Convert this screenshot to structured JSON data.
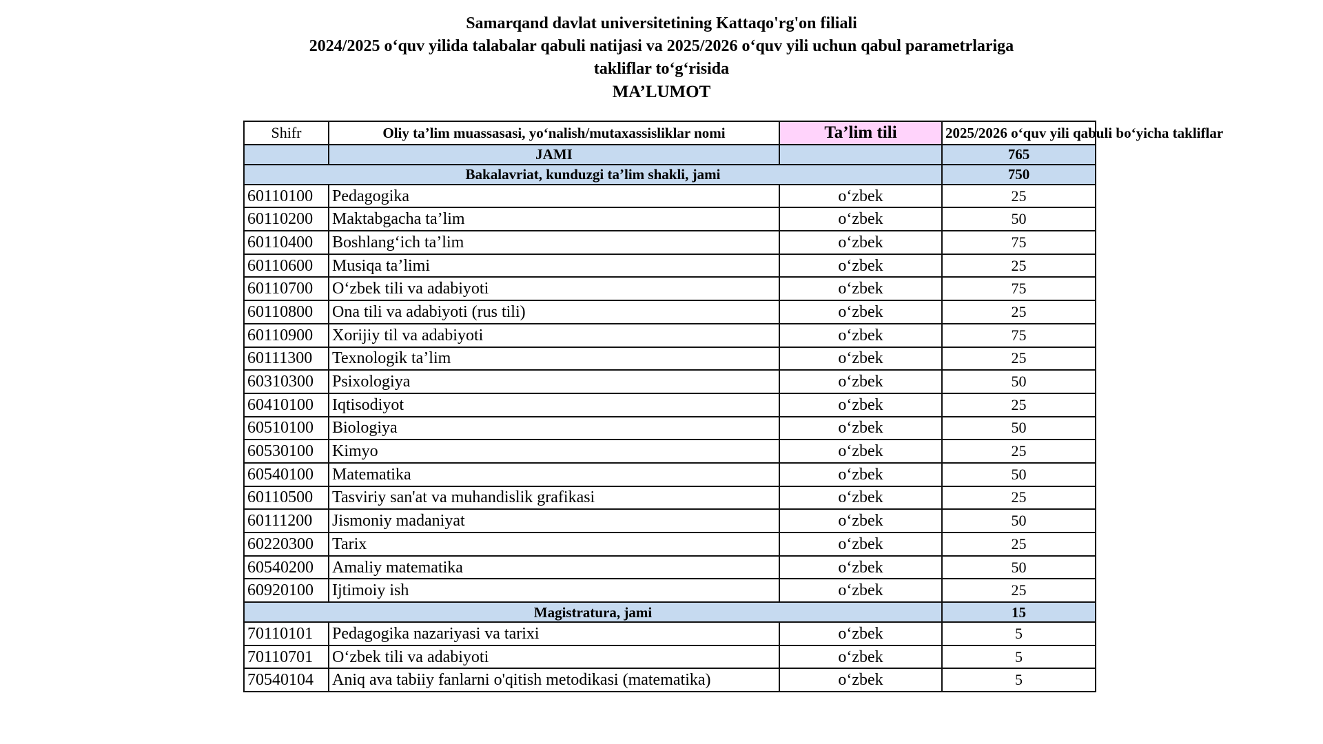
{
  "title": {
    "line1": "Samarqand davlat universitetining Kattaqo'rg'on filiali",
    "line2": "2024/2025 o‘quv yilida talabalar qabuli natijasi va 2025/2026 o‘quv yili uchun qabul parametrlariga",
    "line3": "takliflar to‘g‘risida",
    "line4": "MA’LUMOT"
  },
  "table": {
    "headers": {
      "shifr": "Shifr",
      "name": "Oliy ta’lim muassasasi, yo‘nalish/mutaxassisliklar nomi",
      "lang": "Ta’lim tili",
      "plan": "2025/2026 o‘quv yili qabuli bo‘yicha takliflar"
    },
    "total": {
      "label": "JAMI",
      "value": "765"
    },
    "bachelor": {
      "label": "Bakalavriat, kunduzgi ta’lim shakli, jami",
      "value": "750",
      "rows": [
        {
          "code": "60110100",
          "name": "Pedagogika",
          "lang": "o‘zbek",
          "value": "25"
        },
        {
          "code": "60110200",
          "name": "Maktabgacha ta’lim",
          "lang": "o‘zbek",
          "value": "50"
        },
        {
          "code": "60110400",
          "name": "Boshlang‘ich ta’lim",
          "lang": "o‘zbek",
          "value": "75"
        },
        {
          "code": "60110600",
          "name": "Musiqa ta’limi",
          "lang": "o‘zbek",
          "value": "25"
        },
        {
          "code": "60110700",
          "name": "O‘zbek tili va adabiyoti",
          "lang": "o‘zbek",
          "value": "75"
        },
        {
          "code": "60110800",
          "name": "Ona tili va adabiyoti (rus tili)",
          "lang": "o‘zbek",
          "value": "25"
        },
        {
          "code": "60110900",
          "name": "Xorijiy til va adabiyoti",
          "lang": "o‘zbek",
          "value": "75"
        },
        {
          "code": "60111300",
          "name": "Texnologik ta’lim",
          "lang": "o‘zbek",
          "value": "25"
        },
        {
          "code": "60310300",
          "name": "Psixologiya",
          "lang": "o‘zbek",
          "value": "50"
        },
        {
          "code": "60410100",
          "name": "Iqtisodiyot",
          "lang": "o‘zbek",
          "value": "25"
        },
        {
          "code": "60510100",
          "name": "Biologiya",
          "lang": "o‘zbek",
          "value": "50"
        },
        {
          "code": "60530100",
          "name": "Kimyo",
          "lang": "o‘zbek",
          "value": "25"
        },
        {
          "code": "60540100",
          "name": "Matematika",
          "lang": "o‘zbek",
          "value": "50"
        },
        {
          "code": "60110500",
          "name": "Tasviriy san'at va muhandislik grafikasi",
          "lang": "o‘zbek",
          "value": "25"
        },
        {
          "code": "60111200",
          "name": "Jismoniy madaniyat",
          "lang": "o‘zbek",
          "value": "50"
        },
        {
          "code": "60220300",
          "name": "Tarix",
          "lang": "o‘zbek",
          "value": "25"
        },
        {
          "code": "60540200",
          "name": "Amaliy matematika",
          "lang": "o‘zbek",
          "value": "50"
        },
        {
          "code": "60920100",
          "name": "Ijtimoiy ish",
          "lang": "o‘zbek",
          "value": "25"
        }
      ]
    },
    "master": {
      "label": "Magistratura, jami",
      "value": "15",
      "rows": [
        {
          "code": "70110101",
          "name": "Pedagogika nazariyasi va tarixi",
          "lang": "o‘zbek",
          "value": "5"
        },
        {
          "code": "70110701",
          "name": "O‘zbek tili va adabiyoti",
          "lang": "o‘zbek",
          "value": "5"
        },
        {
          "code": "70540104",
          "name": "Aniq ava tabiiy fanlarni o'qitish metodikasi (matematika)",
          "lang": "o‘zbek",
          "value": "5"
        }
      ]
    }
  },
  "colors": {
    "summary_row": "#c6daf0",
    "lang_header": "#ffd3fb"
  }
}
